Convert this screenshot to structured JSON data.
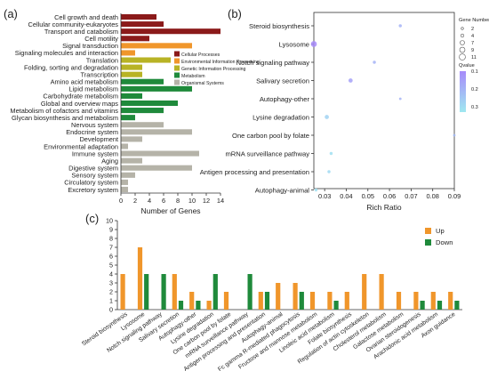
{
  "panels": {
    "a": "(a)",
    "b": "(b)",
    "c": "(c)"
  },
  "chart_data": [
    {
      "panel": "(a)",
      "type": "bar",
      "orientation": "horizontal",
      "xlabel": "Number of Genes",
      "xlim": [
        0,
        14
      ],
      "xticks": [
        0,
        2,
        4,
        6,
        8,
        10,
        12,
        14
      ],
      "grid": false,
      "legend_position": "right",
      "legend": [
        {
          "name": "Cellular Processes",
          "color": "#8b1a1a"
        },
        {
          "name": "Environmental Information Processing",
          "color": "#f0962b"
        },
        {
          "name": "Genetic Information Processing",
          "color": "#b8b325"
        },
        {
          "name": "Metabolism",
          "color": "#1f8a3b"
        },
        {
          "name": "Organismal Systems",
          "color": "#b5b3a8"
        }
      ],
      "categories": [
        {
          "label": "Cell growth and death",
          "value": 5,
          "group": 0
        },
        {
          "label": "Cellular community-eukaryotes",
          "value": 6,
          "group": 0
        },
        {
          "label": "Transport and catabolism",
          "value": 14,
          "group": 0
        },
        {
          "label": "Cell motility",
          "value": 4,
          "group": 0
        },
        {
          "label": "Signal transduction",
          "value": 10,
          "group": 1
        },
        {
          "label": "Signaling molecules and interaction",
          "value": 2,
          "group": 1
        },
        {
          "label": "Translation",
          "value": 7,
          "group": 2
        },
        {
          "label": "Folding, sorting and degradation",
          "value": 3,
          "group": 2
        },
        {
          "label": "Transcription",
          "value": 3,
          "group": 2
        },
        {
          "label": "Amino acid metabolism",
          "value": 6,
          "group": 3
        },
        {
          "label": "Lipid metabolism",
          "value": 10,
          "group": 3
        },
        {
          "label": "Carbohydrate metabolism",
          "value": 3,
          "group": 3
        },
        {
          "label": "Global and overview maps",
          "value": 8,
          "group": 3
        },
        {
          "label": "Metabolism of cofactors and vitamins",
          "value": 6,
          "group": 3
        },
        {
          "label": "Glycan biosynthesis and metabolism",
          "value": 2,
          "group": 3
        },
        {
          "label": "Nervous system",
          "value": 6,
          "group": 4
        },
        {
          "label": "Endocrine system",
          "value": 10,
          "group": 4
        },
        {
          "label": "Development",
          "value": 3,
          "group": 4
        },
        {
          "label": "Environmental adaptation",
          "value": 1,
          "group": 4
        },
        {
          "label": "Immune system",
          "value": 11,
          "group": 4
        },
        {
          "label": "Aging",
          "value": 3,
          "group": 4
        },
        {
          "label": "Digestive system",
          "value": 10,
          "group": 4
        },
        {
          "label": "Sensory system",
          "value": 2,
          "group": 4
        },
        {
          "label": "Circulatory system",
          "value": 1,
          "group": 4
        },
        {
          "label": "Excretory system",
          "value": 1,
          "group": 4
        }
      ]
    },
    {
      "panel": "(b)",
      "type": "scatter",
      "xlabel": "Rich Ratio",
      "xlim": [
        0.025,
        0.09
      ],
      "xticks": [
        0.03,
        0.04,
        0.05,
        0.06,
        0.07,
        0.08,
        0.09
      ],
      "size_legend_title": "Gene Number",
      "size_legend": [
        2,
        4,
        7,
        9,
        11
      ],
      "color_legend_title": "Qvalue",
      "color_legend_ticks": [
        0.1,
        0.2,
        0.3
      ],
      "color_range": [
        "#a78bfa",
        "#9fe8f0"
      ],
      "points": [
        {
          "label": "Steroid biosynthesis",
          "x": 0.065,
          "gene_number": 2,
          "qvalue": 0.18
        },
        {
          "label": "Lysosome",
          "x": 0.025,
          "gene_number": 7,
          "qvalue": 0.05
        },
        {
          "label": "Notch signaling pathway",
          "x": 0.053,
          "gene_number": 2,
          "qvalue": 0.18
        },
        {
          "label": "Salivary secretion",
          "x": 0.042,
          "gene_number": 4,
          "qvalue": 0.12
        },
        {
          "label": "Autophagy-other",
          "x": 0.065,
          "gene_number": 1,
          "qvalue": 0.18
        },
        {
          "label": "Lysine degradation",
          "x": 0.031,
          "gene_number": 4,
          "qvalue": 0.28
        },
        {
          "label": "One carbon pool by folate",
          "x": 0.09,
          "gene_number": 1,
          "qvalue": 0.2
        },
        {
          "label": "mRNA surveillance pathway",
          "x": 0.033,
          "gene_number": 2,
          "qvalue": 0.32
        },
        {
          "label": "Antigen processing and presentation",
          "x": 0.032,
          "gene_number": 2,
          "qvalue": 0.3
        },
        {
          "label": "Autophagy-animal",
          "x": 0.026,
          "gene_number": 2,
          "qvalue": 0.32
        }
      ]
    },
    {
      "panel": "(c)",
      "type": "bar",
      "orientation": "vertical",
      "ylim": [
        0,
        10
      ],
      "yticks": [
        0,
        1,
        2,
        3,
        4,
        5,
        6,
        7,
        8,
        9,
        10
      ],
      "legend_position": "top-right",
      "categories": [
        "Steroid biosynthesis",
        "Lysosome",
        "Notch signaling pathway",
        "Salivary secretion",
        "Autophagy-other",
        "Lysine degradation",
        "One carbon pool by folate",
        "mRNA surveillance pathway",
        "Antigen processing and presentation",
        "Autophagy-animal",
        "Fc gamma R-mediated phagocytosis",
        "Fructose and mannose metabolism",
        "Linoleic acid metabolism",
        "Folate biosynthesis",
        "Regulation of actin cytoskeleton",
        "Cholesterol metabolism",
        "Galactose metabolism",
        "Ovarian steroidogenesis",
        "Arachidonic acid metabolism",
        "Axon guidance"
      ],
      "series": [
        {
          "name": "Up",
          "color": "#f0962b",
          "values": [
            4,
            7,
            0,
            4,
            2,
            1,
            2,
            0,
            2,
            3,
            3,
            2,
            2,
            2,
            4,
            4,
            2,
            2,
            2,
            2
          ]
        },
        {
          "name": "Down",
          "color": "#1f8a3b",
          "values": [
            0,
            4,
            4,
            1,
            1,
            4,
            0,
            4,
            2,
            0,
            2,
            0,
            1,
            0,
            0,
            0,
            0,
            1,
            1,
            1
          ]
        }
      ]
    }
  ]
}
